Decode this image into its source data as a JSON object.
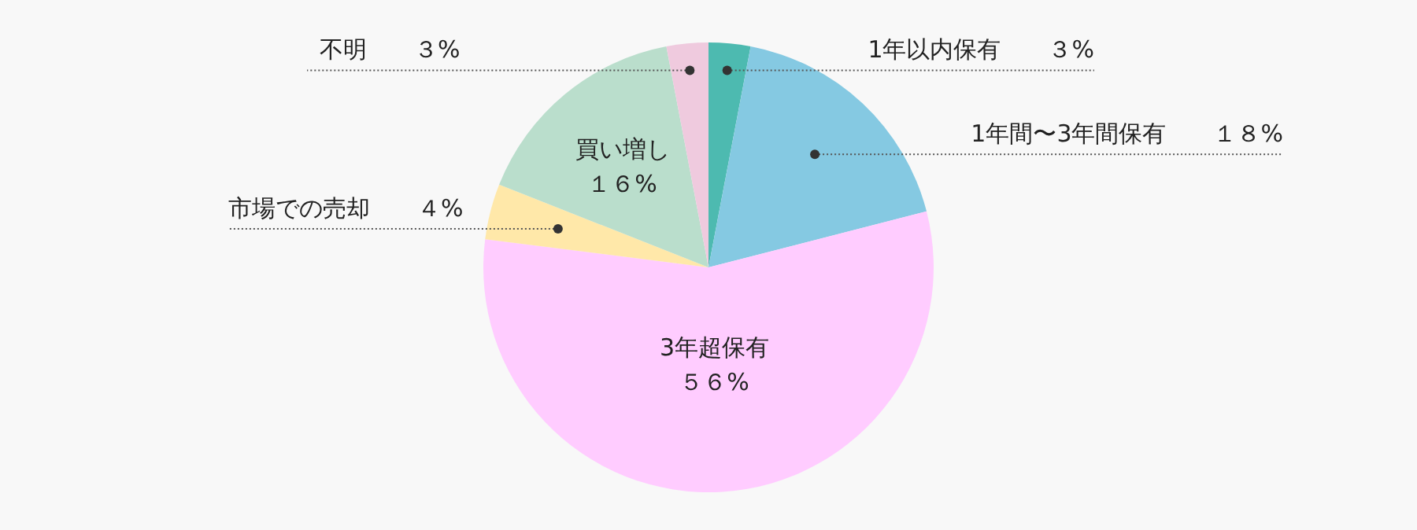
{
  "chart_data": {
    "type": "pie",
    "categories": [
      "1年以内保有",
      "1年間〜3年間保有",
      "3年超保有",
      "市場での売却",
      "買い増し",
      "不明"
    ],
    "values": [
      3,
      18,
      56,
      4,
      16,
      3
    ],
    "colors": [
      "#4dbab0",
      "#85c9e2",
      "#ffccff",
      "#ffe8a9",
      "#badecc",
      "#efcade"
    ],
    "value_labels": [
      "３%",
      "１８%",
      "５６%",
      "４%",
      "１６%",
      "３%"
    ]
  }
}
